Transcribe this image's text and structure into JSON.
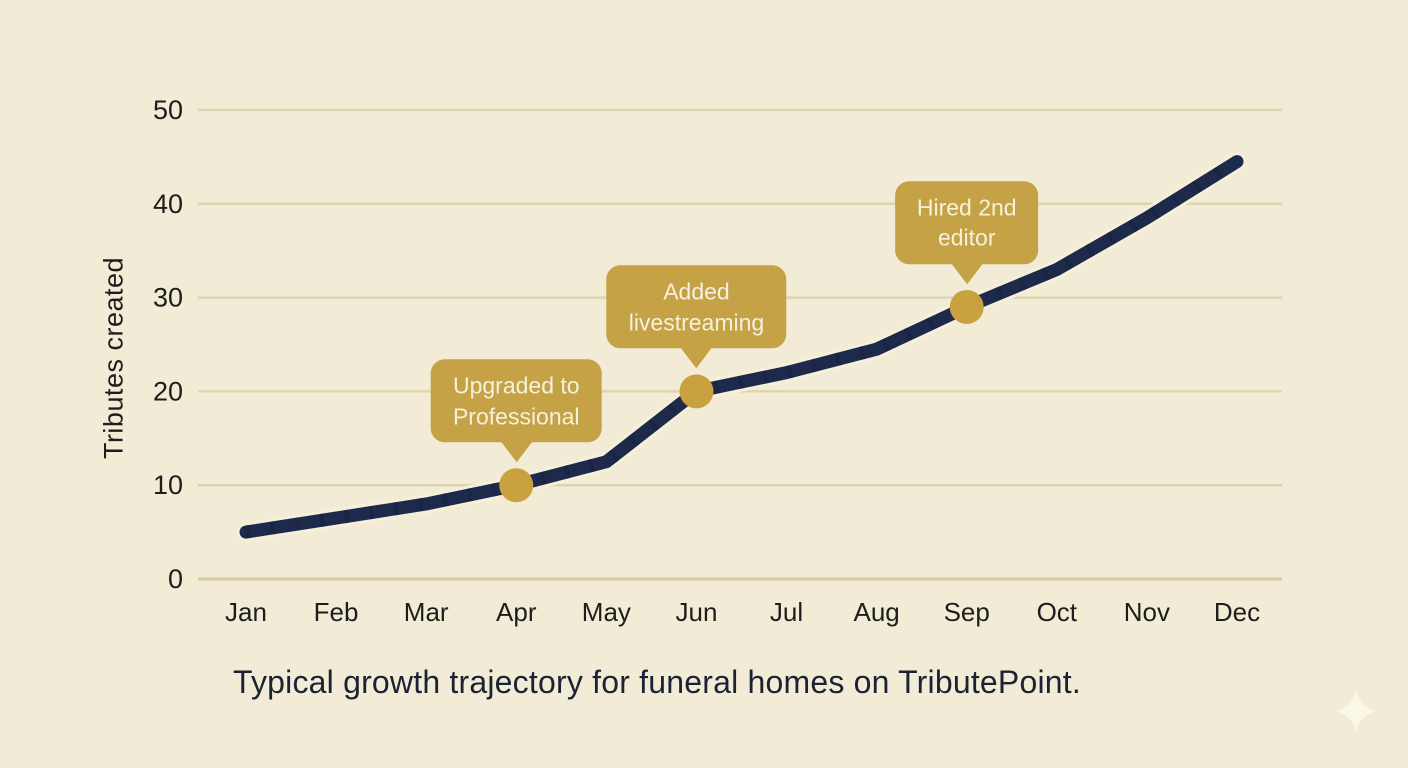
{
  "caption": "Typical growth trajectory for funeral homes on TributePoint.",
  "y_axis_title": "Tributes created",
  "colors": {
    "background": "#f2ecd6",
    "gridline": "#ded5ae",
    "baseline": "#d5caa0",
    "line": "#1e2a4c",
    "line_texture": "#111c35",
    "line_halo": "#f6f0da",
    "marker": "#c9a23f",
    "callout_fill": "#c5a245",
    "callout_text": "#f6f1dd",
    "tick_text": "#1d1d1d",
    "caption_text": "#1b2233",
    "sparkle": "#faf7e6"
  },
  "icons": {
    "sparkle": "four-point-star"
  },
  "chart_data": {
    "type": "line",
    "title": "",
    "xlabel": "",
    "ylabel": "Tributes created",
    "categories": [
      "Jan",
      "Feb",
      "Mar",
      "Apr",
      "May",
      "Jun",
      "Jul",
      "Aug",
      "Sep",
      "Oct",
      "Nov",
      "Dec"
    ],
    "values": [
      5,
      6.5,
      8,
      10,
      12.5,
      20,
      22,
      24.5,
      29,
      33,
      38.5,
      44.5
    ],
    "ylim": [
      0,
      50
    ],
    "yticks": [
      0,
      10,
      20,
      30,
      40,
      50
    ],
    "grid": true,
    "legend": false,
    "annotations": [
      {
        "month": "Apr",
        "month_index": 3,
        "value": 10,
        "lines": [
          "Upgraded to",
          "Professional"
        ]
      },
      {
        "month": "Jun",
        "month_index": 5,
        "value": 20,
        "lines": [
          "Added",
          "livestreaming"
        ]
      },
      {
        "month": "Sep",
        "month_index": 8,
        "value": 29,
        "lines": [
          "Hired 2nd",
          "editor"
        ]
      }
    ]
  }
}
